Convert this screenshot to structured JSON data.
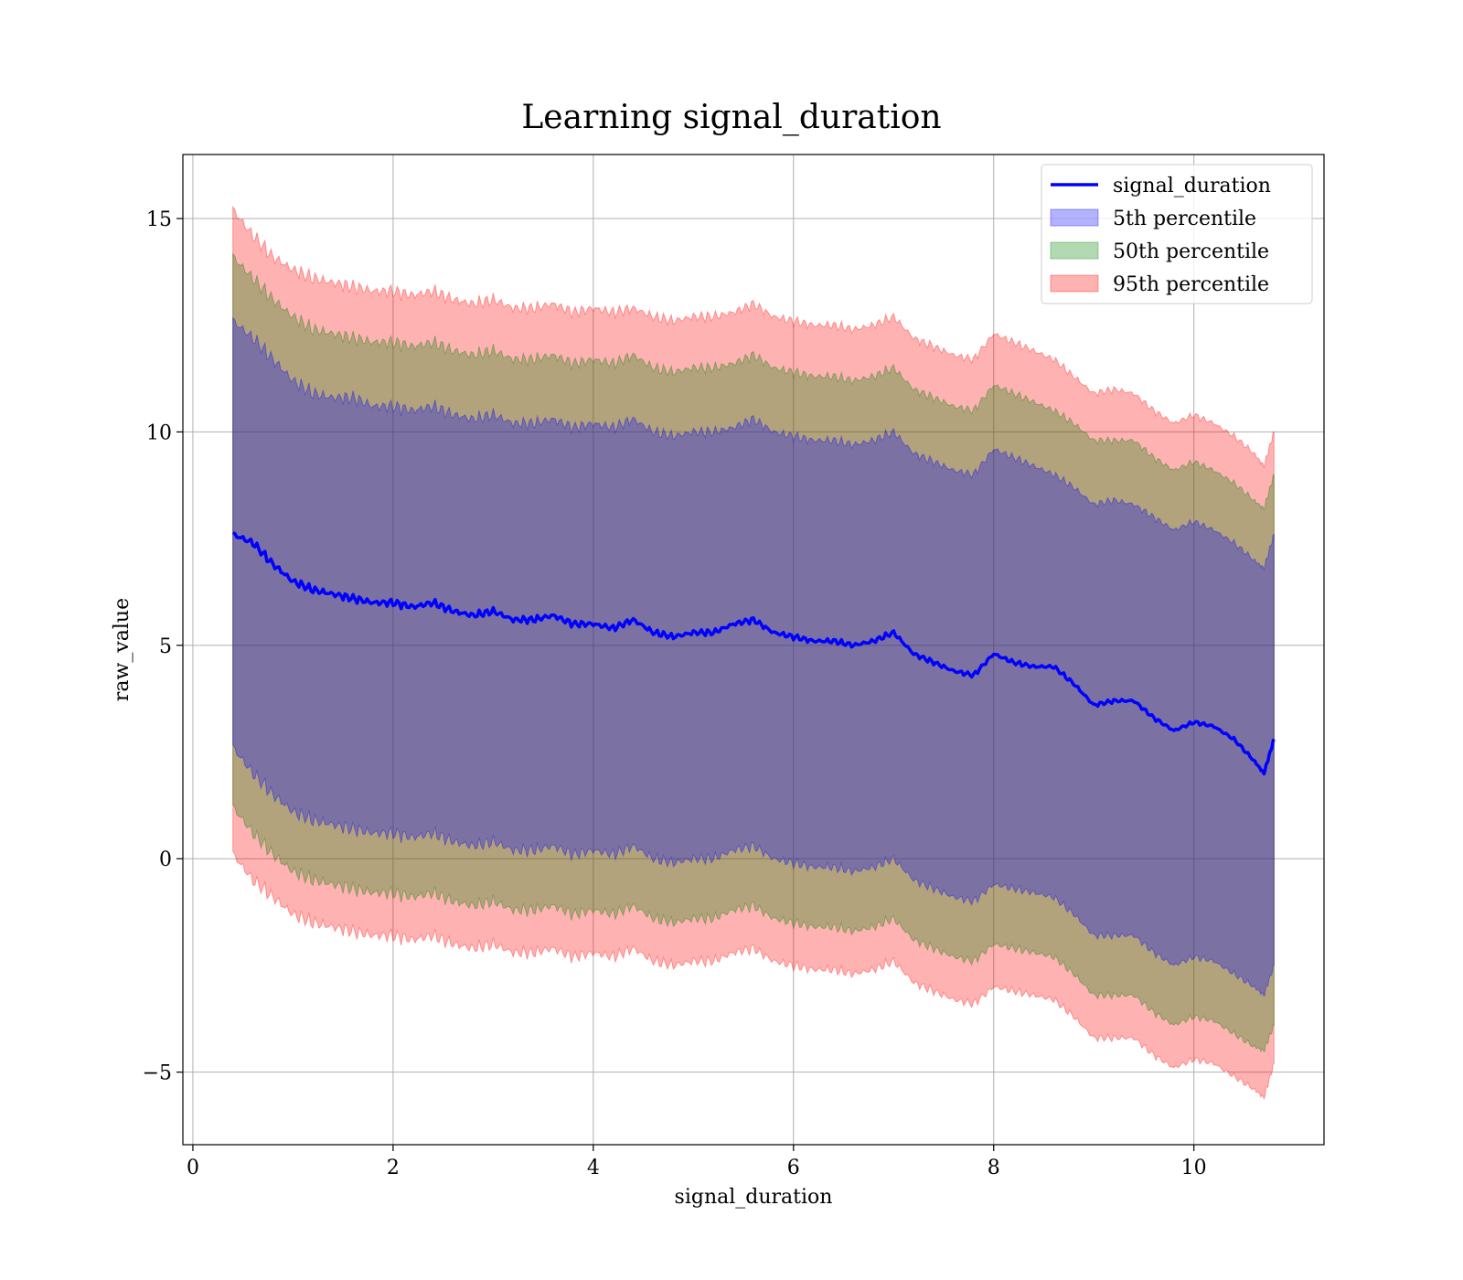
{
  "chart_data": {
    "type": "area",
    "title": "Learning signal_duration",
    "xlabel": "signal_duration",
    "ylabel": "raw_value",
    "xlim": [
      -0.1,
      11.3
    ],
    "ylim": [
      -6.7,
      16.5
    ],
    "x_ticks": [
      0,
      2,
      4,
      6,
      8,
      10
    ],
    "y_ticks": [
      -5,
      0,
      5,
      10,
      15
    ],
    "x_tick_labels": [
      "0",
      "2",
      "4",
      "6",
      "8",
      "10"
    ],
    "y_tick_labels": [
      "−5",
      "0",
      "5",
      "10",
      "15"
    ],
    "grid": true,
    "legend_position": "top-right",
    "x": [
      0.4,
      0.6,
      0.8,
      1.0,
      1.2,
      1.4,
      1.6,
      1.8,
      2.0,
      2.2,
      2.4,
      2.6,
      2.8,
      3.0,
      3.2,
      3.4,
      3.6,
      3.8,
      4.0,
      4.2,
      4.4,
      4.6,
      4.8,
      5.0,
      5.2,
      5.4,
      5.6,
      5.8,
      6.0,
      6.2,
      6.4,
      6.6,
      6.8,
      7.0,
      7.2,
      7.4,
      7.6,
      7.8,
      8.0,
      8.2,
      8.4,
      8.6,
      8.8,
      9.0,
      9.2,
      9.4,
      9.6,
      9.8,
      10.0,
      10.2,
      10.4,
      10.6,
      10.7,
      10.8
    ],
    "line": {
      "name": "signal_duration",
      "color": "#0000ff",
      "values": [
        7.6,
        7.4,
        6.9,
        6.5,
        6.3,
        6.2,
        6.1,
        6.0,
        6.0,
        5.9,
        6.0,
        5.8,
        5.7,
        5.8,
        5.6,
        5.6,
        5.7,
        5.5,
        5.5,
        5.4,
        5.6,
        5.3,
        5.2,
        5.3,
        5.3,
        5.5,
        5.6,
        5.3,
        5.2,
        5.1,
        5.1,
        5.0,
        5.1,
        5.3,
        4.8,
        4.6,
        4.4,
        4.3,
        4.8,
        4.6,
        4.5,
        4.5,
        4.1,
        3.6,
        3.7,
        3.7,
        3.3,
        3.0,
        3.2,
        3.1,
        2.8,
        2.3,
        2.0,
        2.8
      ]
    },
    "series": [
      {
        "name": "5th percentile",
        "color": "#0000ff",
        "lower": [
          2.6,
          2.0,
          1.5,
          1.1,
          0.9,
          0.8,
          0.7,
          0.6,
          0.6,
          0.5,
          0.6,
          0.4,
          0.3,
          0.4,
          0.2,
          0.2,
          0.3,
          0.1,
          0.2,
          0.1,
          0.3,
          0.0,
          -0.1,
          0.0,
          0.0,
          0.2,
          0.3,
          0.0,
          -0.1,
          -0.2,
          -0.2,
          -0.3,
          -0.2,
          0.0,
          -0.5,
          -0.7,
          -0.9,
          -1.0,
          -0.6,
          -0.7,
          -0.8,
          -0.9,
          -1.3,
          -1.8,
          -1.8,
          -1.8,
          -2.2,
          -2.5,
          -2.3,
          -2.4,
          -2.7,
          -3.0,
          -3.2,
          -2.5
        ],
        "upper": [
          12.6,
          12.2,
          11.7,
          11.2,
          10.9,
          10.8,
          10.8,
          10.6,
          10.6,
          10.5,
          10.6,
          10.4,
          10.3,
          10.4,
          10.2,
          10.2,
          10.3,
          10.1,
          10.2,
          10.1,
          10.3,
          10.0,
          9.9,
          10.0,
          10.0,
          10.1,
          10.3,
          10.0,
          9.9,
          9.8,
          9.8,
          9.7,
          9.8,
          10.0,
          9.5,
          9.3,
          9.1,
          9.0,
          9.6,
          9.4,
          9.2,
          9.0,
          8.7,
          8.3,
          8.4,
          8.3,
          8.0,
          7.7,
          7.9,
          7.7,
          7.4,
          7.0,
          6.8,
          7.6
        ]
      },
      {
        "name": "50th percentile",
        "color": "#008000",
        "lower": [
          1.2,
          0.6,
          0.1,
          -0.3,
          -0.5,
          -0.6,
          -0.7,
          -0.8,
          -0.8,
          -0.9,
          -0.8,
          -1.0,
          -1.1,
          -1.0,
          -1.2,
          -1.2,
          -1.1,
          -1.3,
          -1.2,
          -1.3,
          -1.1,
          -1.4,
          -1.5,
          -1.4,
          -1.4,
          -1.2,
          -1.1,
          -1.4,
          -1.5,
          -1.6,
          -1.6,
          -1.7,
          -1.6,
          -1.4,
          -1.9,
          -2.1,
          -2.3,
          -2.4,
          -2.0,
          -2.1,
          -2.2,
          -2.3,
          -2.7,
          -3.2,
          -3.2,
          -3.2,
          -3.6,
          -3.9,
          -3.7,
          -3.8,
          -4.1,
          -4.4,
          -4.5,
          -3.9
        ],
        "upper": [
          14.1,
          13.6,
          13.1,
          12.7,
          12.4,
          12.3,
          12.2,
          12.1,
          12.1,
          12.0,
          12.1,
          11.9,
          11.8,
          11.9,
          11.7,
          11.7,
          11.8,
          11.6,
          11.7,
          11.6,
          11.8,
          11.5,
          11.4,
          11.5,
          11.5,
          11.6,
          11.8,
          11.5,
          11.4,
          11.3,
          11.3,
          11.2,
          11.3,
          11.5,
          11.0,
          10.8,
          10.6,
          10.5,
          11.1,
          10.9,
          10.7,
          10.5,
          10.2,
          9.8,
          9.8,
          9.8,
          9.4,
          9.1,
          9.3,
          9.1,
          8.8,
          8.4,
          8.2,
          9.0
        ]
      },
      {
        "name": "95th percentile",
        "color": "#ff0000",
        "lower": [
          0.1,
          -0.5,
          -0.9,
          -1.3,
          -1.5,
          -1.6,
          -1.7,
          -1.8,
          -1.8,
          -1.9,
          -1.8,
          -2.0,
          -2.1,
          -2.0,
          -2.2,
          -2.2,
          -2.1,
          -2.3,
          -2.2,
          -2.3,
          -2.1,
          -2.4,
          -2.5,
          -2.4,
          -2.4,
          -2.2,
          -2.1,
          -2.4,
          -2.5,
          -2.6,
          -2.6,
          -2.7,
          -2.6,
          -2.4,
          -2.9,
          -3.1,
          -3.3,
          -3.4,
          -3.0,
          -3.1,
          -3.2,
          -3.3,
          -3.7,
          -4.2,
          -4.2,
          -4.2,
          -4.6,
          -4.9,
          -4.7,
          -4.8,
          -5.1,
          -5.4,
          -5.6,
          -4.8
        ],
        "upper": [
          15.2,
          14.6,
          14.1,
          13.8,
          13.6,
          13.5,
          13.4,
          13.3,
          13.3,
          13.2,
          13.3,
          13.1,
          13.0,
          13.1,
          12.9,
          12.9,
          13.0,
          12.8,
          12.9,
          12.8,
          12.9,
          12.7,
          12.6,
          12.7,
          12.7,
          12.8,
          13.0,
          12.7,
          12.6,
          12.5,
          12.5,
          12.4,
          12.5,
          12.7,
          12.2,
          12.0,
          11.8,
          11.7,
          12.3,
          12.1,
          11.9,
          11.7,
          11.3,
          10.9,
          11.0,
          10.9,
          10.5,
          10.2,
          10.4,
          10.2,
          9.9,
          9.5,
          9.2,
          10.0
        ]
      }
    ]
  }
}
